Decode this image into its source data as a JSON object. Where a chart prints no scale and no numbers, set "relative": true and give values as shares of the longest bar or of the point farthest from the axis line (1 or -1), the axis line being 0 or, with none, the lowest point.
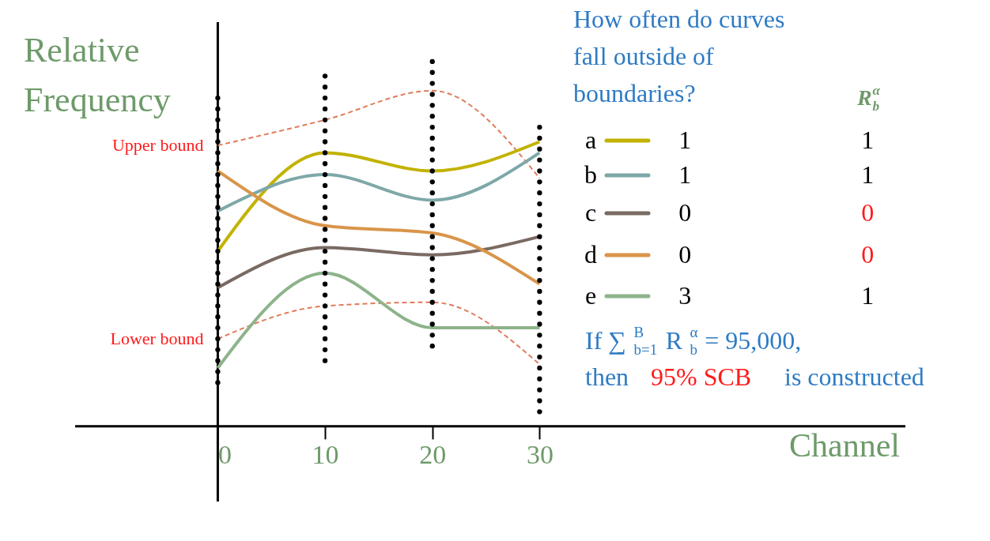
{
  "chart_data": {
    "type": "line",
    "relative": true,
    "xlabel": "Channel",
    "ylabel": "Relative Frequency",
    "x": [
      0,
      10,
      20,
      30
    ],
    "xlim": [
      -13.3,
      64.1
    ],
    "xticks": [
      0,
      10,
      20,
      30
    ],
    "legend": "right",
    "series": [
      {
        "color": "#e07b5a",
        "line_style": "dashed",
        "values": [
          0.77,
          0.84,
          0.92,
          0.68
        ]
      },
      {
        "color": "#e07b5a",
        "line_style": "dashed",
        "values": [
          0.24,
          0.33,
          0.34,
          0.17
        ]
      },
      {
        "name": "a",
        "color": "#c2b200",
        "line_style": "solid",
        "values": [
          0.48,
          0.75,
          0.7,
          0.78
        ]
      },
      {
        "name": "b",
        "color": "#7fa8a8",
        "line_style": "solid",
        "values": [
          0.59,
          0.69,
          0.62,
          0.75
        ]
      },
      {
        "name": "c",
        "color": "#7a6a62",
        "line_style": "solid",
        "values": [
          0.38,
          0.49,
          0.47,
          0.52
        ]
      },
      {
        "name": "d",
        "color": "#d9954a",
        "line_style": "solid",
        "values": [
          0.7,
          0.55,
          0.53,
          0.39
        ]
      },
      {
        "name": "e",
        "color": "#8db38a",
        "line_style": "solid",
        "values": [
          0.16,
          0.42,
          0.27,
          0.27
        ]
      },
      {
        "type": "scatter",
        "marker": "circle",
        "color": "#000000",
        "x": [
          0,
          0,
          0,
          0,
          0,
          0,
          0,
          0,
          0,
          0,
          0,
          0,
          0,
          0,
          0,
          0,
          0,
          0,
          0,
          0,
          0,
          0,
          0,
          0,
          0,
          0,
          0
        ],
        "values": [
          0.9,
          0.87,
          0.84,
          0.81,
          0.78,
          0.75,
          0.72,
          0.69,
          0.66,
          0.63,
          0.6,
          0.57,
          0.54,
          0.51,
          0.48,
          0.45,
          0.42,
          0.39,
          0.36,
          0.33,
          0.3,
          0.27,
          0.24,
          0.21,
          0.18,
          0.15,
          0.12
        ]
      },
      {
        "type": "scatter",
        "marker": "circle",
        "color": "#000000",
        "x": [
          10,
          10,
          10,
          10,
          10,
          10,
          10,
          10,
          10,
          10,
          10,
          10,
          10,
          10,
          10,
          10,
          10,
          10,
          10,
          10,
          10,
          10,
          10,
          10,
          10,
          10,
          10
        ],
        "values": [
          0.96,
          0.93,
          0.9,
          0.87,
          0.84,
          0.81,
          0.78,
          0.75,
          0.72,
          0.69,
          0.66,
          0.63,
          0.6,
          0.57,
          0.54,
          0.51,
          0.48,
          0.45,
          0.42,
          0.39,
          0.36,
          0.33,
          0.3,
          0.27,
          0.24,
          0.21,
          0.18
        ]
      },
      {
        "type": "scatter",
        "marker": "circle",
        "color": "#000000",
        "x": [
          20,
          20,
          20,
          20,
          20,
          20,
          20,
          20,
          20,
          20,
          20,
          20,
          20,
          20,
          20,
          20,
          20,
          20,
          20,
          20,
          20,
          20,
          20,
          20,
          20,
          20,
          20
        ],
        "values": [
          1.0,
          0.97,
          0.94,
          0.91,
          0.88,
          0.85,
          0.82,
          0.79,
          0.76,
          0.73,
          0.7,
          0.67,
          0.64,
          0.61,
          0.58,
          0.55,
          0.52,
          0.49,
          0.46,
          0.43,
          0.4,
          0.37,
          0.34,
          0.31,
          0.28,
          0.25,
          0.22
        ]
      },
      {
        "type": "scatter",
        "marker": "circle",
        "color": "#000000",
        "x": [
          30,
          30,
          30,
          30,
          30,
          30,
          30,
          30,
          30,
          30,
          30,
          30,
          30,
          30,
          30,
          30,
          30,
          30,
          30,
          30,
          30,
          30,
          30,
          30,
          30,
          30,
          30
        ],
        "values": [
          0.82,
          0.79,
          0.76,
          0.73,
          0.7,
          0.67,
          0.64,
          0.61,
          0.58,
          0.55,
          0.52,
          0.49,
          0.46,
          0.43,
          0.4,
          0.37,
          0.34,
          0.31,
          0.28,
          0.25,
          0.22,
          0.19,
          0.16,
          0.13,
          0.1,
          0.07,
          0.04
        ]
      }
    ],
    "annotations": [
      "How often do curves fall outside of boundaries?",
      "R$^{α}$$_{b}$",
      "1",
      "1",
      "0",
      "0",
      "3",
      "1",
      "1",
      "0",
      "0",
      "1",
      "If ∑$^{B}$$_{b=1}$ R$^{α}$$_{b}$ = 95,000,",
      "then",
      "95% SCB",
      "is constructed",
      {
        "text": "Upper bound",
        "x": 0,
        "y": 0.77
      },
      {
        "text": "Lower bound",
        "x": 0,
        "y": 0.24
      }
    ]
  }
}
